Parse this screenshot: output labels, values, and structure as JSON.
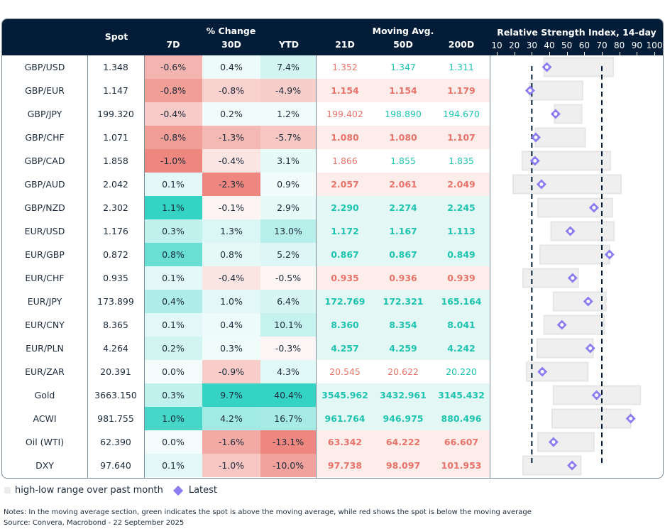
{
  "header": {
    "spot": "Spot",
    "pct_change_group": "% Change",
    "pct_cols": [
      "7D",
      "30D",
      "YTD"
    ],
    "ma_group": "Moving Avg.",
    "ma_cols": [
      "21D",
      "50D",
      "200D"
    ],
    "rsi_title": "Relative Strength Index, 14-day"
  },
  "colors": {
    "header_bg": "#031d38",
    "green_text": "#1ec4b0",
    "red_text": "#e8736a",
    "green_row_bg": "#e3f7f4",
    "red_row_bg": "#fcecea",
    "rsi_range": "#ececec",
    "rsi_marker": "#8b7cf0",
    "threshold_line": "#031d38"
  },
  "legend": {
    "range_label": "high-low range over past month",
    "latest_label": "Latest"
  },
  "notes": {
    "line1": "Notes: In the moving average section, green indicates the spot is above the moving average, while red shows the spot is below the moving average",
    "line2": "Source: Convera, Macrobond - 22 September 2025"
  },
  "rows": [
    {
      "name": "GBP/USD",
      "spot": "1.348",
      "d7": "-0.6%",
      "d30": "0.4%",
      "ytd": "7.4%",
      "ma21": "1.352",
      "ma50": "1.347",
      "ma200": "1.311",
      "ma_bold": false,
      "ma_colors": [
        "red",
        "green",
        "green"
      ]
    },
    {
      "name": "GBP/EUR",
      "spot": "1.147",
      "d7": "-0.8%",
      "d30": "-0.8%",
      "ytd": "-4.9%",
      "ma21": "1.154",
      "ma50": "1.154",
      "ma200": "1.179",
      "ma_bold": true,
      "ma_colors": [
        "red",
        "red",
        "red"
      ]
    },
    {
      "name": "GBP/JPY",
      "spot": "199.320",
      "d7": "-0.4%",
      "d30": "0.2%",
      "ytd": "1.2%",
      "ma21": "199.402",
      "ma50": "198.890",
      "ma200": "194.670",
      "ma_bold": false,
      "ma_colors": [
        "red",
        "green",
        "green"
      ]
    },
    {
      "name": "GBP/CHF",
      "spot": "1.071",
      "d7": "-0.8%",
      "d30": "-1.3%",
      "ytd": "-5.7%",
      "ma21": "1.080",
      "ma50": "1.080",
      "ma200": "1.107",
      "ma_bold": true,
      "ma_colors": [
        "red",
        "red",
        "red"
      ]
    },
    {
      "name": "GBP/CAD",
      "spot": "1.858",
      "d7": "-1.0%",
      "d30": "-0.4%",
      "ytd": "3.1%",
      "ma21": "1.866",
      "ma50": "1.855",
      "ma200": "1.835",
      "ma_bold": false,
      "ma_colors": [
        "red",
        "green",
        "green"
      ]
    },
    {
      "name": "GBP/AUD",
      "spot": "2.042",
      "d7": "0.1%",
      "d30": "-2.3%",
      "ytd": "0.9%",
      "ma21": "2.057",
      "ma50": "2.061",
      "ma200": "2.049",
      "ma_bold": true,
      "ma_colors": [
        "red",
        "red",
        "red"
      ]
    },
    {
      "name": "GBP/NZD",
      "spot": "2.302",
      "d7": "1.1%",
      "d30": "-0.1%",
      "ytd": "2.9%",
      "ma21": "2.290",
      "ma50": "2.274",
      "ma200": "2.245",
      "ma_bold": true,
      "ma_colors": [
        "green",
        "green",
        "green"
      ]
    },
    {
      "name": "EUR/USD",
      "spot": "1.176",
      "d7": "0.3%",
      "d30": "1.3%",
      "ytd": "13.0%",
      "ma21": "1.172",
      "ma50": "1.167",
      "ma200": "1.113",
      "ma_bold": true,
      "ma_colors": [
        "green",
        "green",
        "green"
      ]
    },
    {
      "name": "EUR/GBP",
      "spot": "0.872",
      "d7": "0.8%",
      "d30": "0.8%",
      "ytd": "5.2%",
      "ma21": "0.867",
      "ma50": "0.867",
      "ma200": "0.849",
      "ma_bold": true,
      "ma_colors": [
        "green",
        "green",
        "green"
      ]
    },
    {
      "name": "EUR/CHF",
      "spot": "0.935",
      "d7": "0.1%",
      "d30": "-0.4%",
      "ytd": "-0.5%",
      "ma21": "0.935",
      "ma50": "0.936",
      "ma200": "0.939",
      "ma_bold": true,
      "ma_colors": [
        "red",
        "red",
        "red"
      ]
    },
    {
      "name": "EUR/JPY",
      "spot": "173.899",
      "d7": "0.4%",
      "d30": "1.0%",
      "ytd": "6.4%",
      "ma21": "172.769",
      "ma50": "172.321",
      "ma200": "165.164",
      "ma_bold": true,
      "ma_colors": [
        "green",
        "green",
        "green"
      ]
    },
    {
      "name": "EUR/CNY",
      "spot": "8.365",
      "d7": "0.1%",
      "d30": "0.4%",
      "ytd": "10.1%",
      "ma21": "8.360",
      "ma50": "8.354",
      "ma200": "8.041",
      "ma_bold": true,
      "ma_colors": [
        "green",
        "green",
        "green"
      ]
    },
    {
      "name": "EUR/PLN",
      "spot": "4.264",
      "d7": "0.2%",
      "d30": "0.3%",
      "ytd": "-0.3%",
      "ma21": "4.257",
      "ma50": "4.259",
      "ma200": "4.242",
      "ma_bold": true,
      "ma_colors": [
        "green",
        "green",
        "green"
      ]
    },
    {
      "name": "EUR/ZAR",
      "spot": "20.391",
      "d7": "0.0%",
      "d30": "-0.9%",
      "ytd": "4.3%",
      "ma21": "20.545",
      "ma50": "20.622",
      "ma200": "20.220",
      "ma_bold": false,
      "ma_colors": [
        "red",
        "red",
        "green"
      ]
    },
    {
      "name": "Gold",
      "spot": "3663.150",
      "d7": "0.3%",
      "d30": "9.7%",
      "ytd": "40.4%",
      "ma21": "3545.962",
      "ma50": "3432.961",
      "ma200": "3145.432",
      "ma_bold": true,
      "ma_colors": [
        "green",
        "green",
        "green"
      ]
    },
    {
      "name": "ACWI",
      "spot": "981.755",
      "d7": "1.0%",
      "d30": "4.2%",
      "ytd": "16.7%",
      "ma21": "961.764",
      "ma50": "946.975",
      "ma200": "880.496",
      "ma_bold": true,
      "ma_colors": [
        "green",
        "green",
        "green"
      ]
    },
    {
      "name": "Oil (WTI)",
      "spot": "62.390",
      "d7": "0.0%",
      "d30": "-1.6%",
      "ytd": "-13.1%",
      "ma21": "63.342",
      "ma50": "64.222",
      "ma200": "66.607",
      "ma_bold": true,
      "ma_colors": [
        "red",
        "red",
        "red"
      ]
    },
    {
      "name": "DXY",
      "spot": "97.640",
      "d7": "0.1%",
      "d30": "-1.0%",
      "ytd": "-10.0%",
      "ma21": "97.738",
      "ma50": "98.097",
      "ma200": "101.953",
      "ma_bold": true,
      "ma_colors": [
        "red",
        "red",
        "red"
      ]
    }
  ],
  "chart_data": {
    "type": "table",
    "title": "Relative Strength Index, 14-day",
    "xlim": [
      10,
      100
    ],
    "x_ticks": [
      "10",
      "20",
      "30",
      "40",
      "50",
      "60",
      "70",
      "80",
      "90",
      "100"
    ],
    "thresholds": [
      30,
      70
    ],
    "categories": [
      "GBP/USD",
      "GBP/EUR",
      "GBP/JPY",
      "GBP/CHF",
      "GBP/CAD",
      "GBP/AUD",
      "GBP/NZD",
      "EUR/USD",
      "EUR/GBP",
      "EUR/CHF",
      "EUR/JPY",
      "EUR/CNY",
      "EUR/PLN",
      "EUR/ZAR",
      "Gold",
      "ACWI",
      "Oil (WTI)",
      "DXY"
    ],
    "series": [
      {
        "name": "high-low range over past month (low)",
        "values": [
          37,
          29,
          43,
          32,
          24.6,
          19.3,
          33.5,
          41,
          34.7,
          25,
          42.4,
          37,
          33,
          27,
          42.4,
          41.6,
          33.5,
          25
        ]
      },
      {
        "name": "high-low range over past month (high)",
        "values": [
          76.5,
          59,
          58.5,
          60.5,
          74.8,
          81,
          76,
          77,
          74.4,
          56.5,
          72.3,
          71.5,
          65,
          62,
          92,
          86.5,
          65.5,
          58
        ]
      },
      {
        "name": "Latest",
        "values": [
          38.6,
          29,
          43.6,
          32.3,
          31.8,
          35.5,
          65.5,
          52,
          74.4,
          53.3,
          62.2,
          47.2,
          63.4,
          36,
          67,
          86.5,
          42.4,
          53
        ]
      }
    ],
    "legend": "bottom-left"
  }
}
